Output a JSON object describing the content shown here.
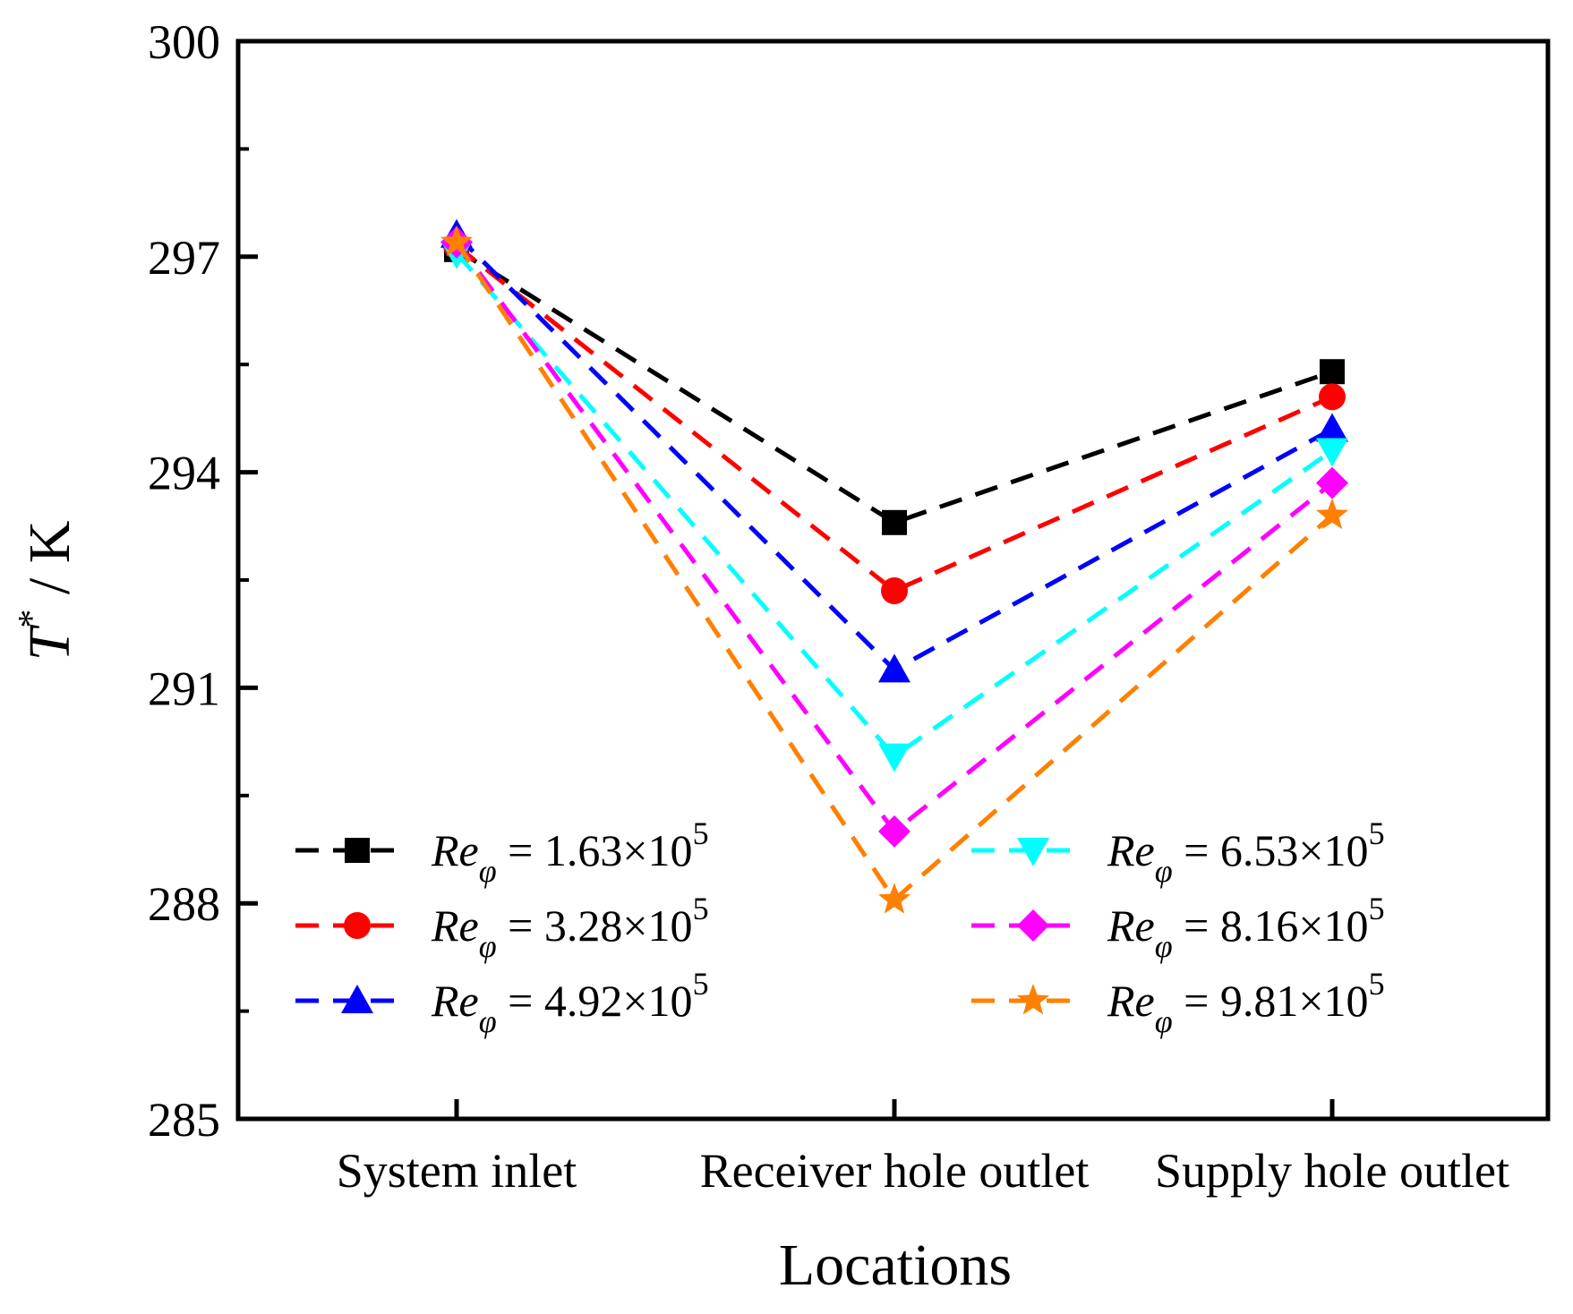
{
  "chart_data": {
    "type": "line",
    "title": "",
    "xlabel": "Locations",
    "ylabel": {
      "symbol": "T",
      "superscript": "*",
      "unit": " / K"
    },
    "categories": [
      "System inlet",
      "Receiver hole outlet",
      "Supply hole outlet"
    ],
    "ylim": [
      285,
      300
    ],
    "yticks": [
      "285",
      "288",
      "291",
      "294",
      "297",
      "300"
    ],
    "ytick_values": [
      285,
      288,
      291,
      294,
      297,
      300
    ],
    "minor_ytick_step": 1.5,
    "grid": false,
    "line_style": "dashed",
    "legend_position": "lower-center, two columns",
    "series": [
      {
        "name_main": "Re",
        "name_sub": "φ",
        "eq": " = 1.63×10",
        "exp": "5",
        "marker": "square",
        "color": "#000000",
        "values": [
          297.1,
          293.3,
          295.4
        ]
      },
      {
        "name_main": "Re",
        "name_sub": "φ",
        "eq": " = 3.28×10",
        "exp": "5",
        "marker": "circle",
        "color": "#ff0000",
        "values": [
          297.15,
          292.35,
          295.05
        ]
      },
      {
        "name_main": "Re",
        "name_sub": "φ",
        "eq": " = 4.92×10",
        "exp": "5",
        "marker": "triangle-up",
        "color": "#0000ff",
        "values": [
          297.3,
          291.25,
          294.6
        ]
      },
      {
        "name_main": "Re",
        "name_sub": "φ",
        "eq": " = 6.53×10",
        "exp": "5",
        "marker": "triangle-down",
        "color": "#00ffff",
        "values": [
          297.05,
          290.05,
          294.3
        ]
      },
      {
        "name_main": "Re",
        "name_sub": "φ",
        "eq": " = 8.16×10",
        "exp": "5",
        "marker": "diamond",
        "color": "#ff00ff",
        "values": [
          297.2,
          289.0,
          293.85
        ]
      },
      {
        "name_main": "Re",
        "name_sub": "φ",
        "eq": " = 9.81×10",
        "exp": "5",
        "marker": "star",
        "color": "#ff8000",
        "values": [
          297.2,
          288.05,
          293.4
        ]
      }
    ]
  }
}
